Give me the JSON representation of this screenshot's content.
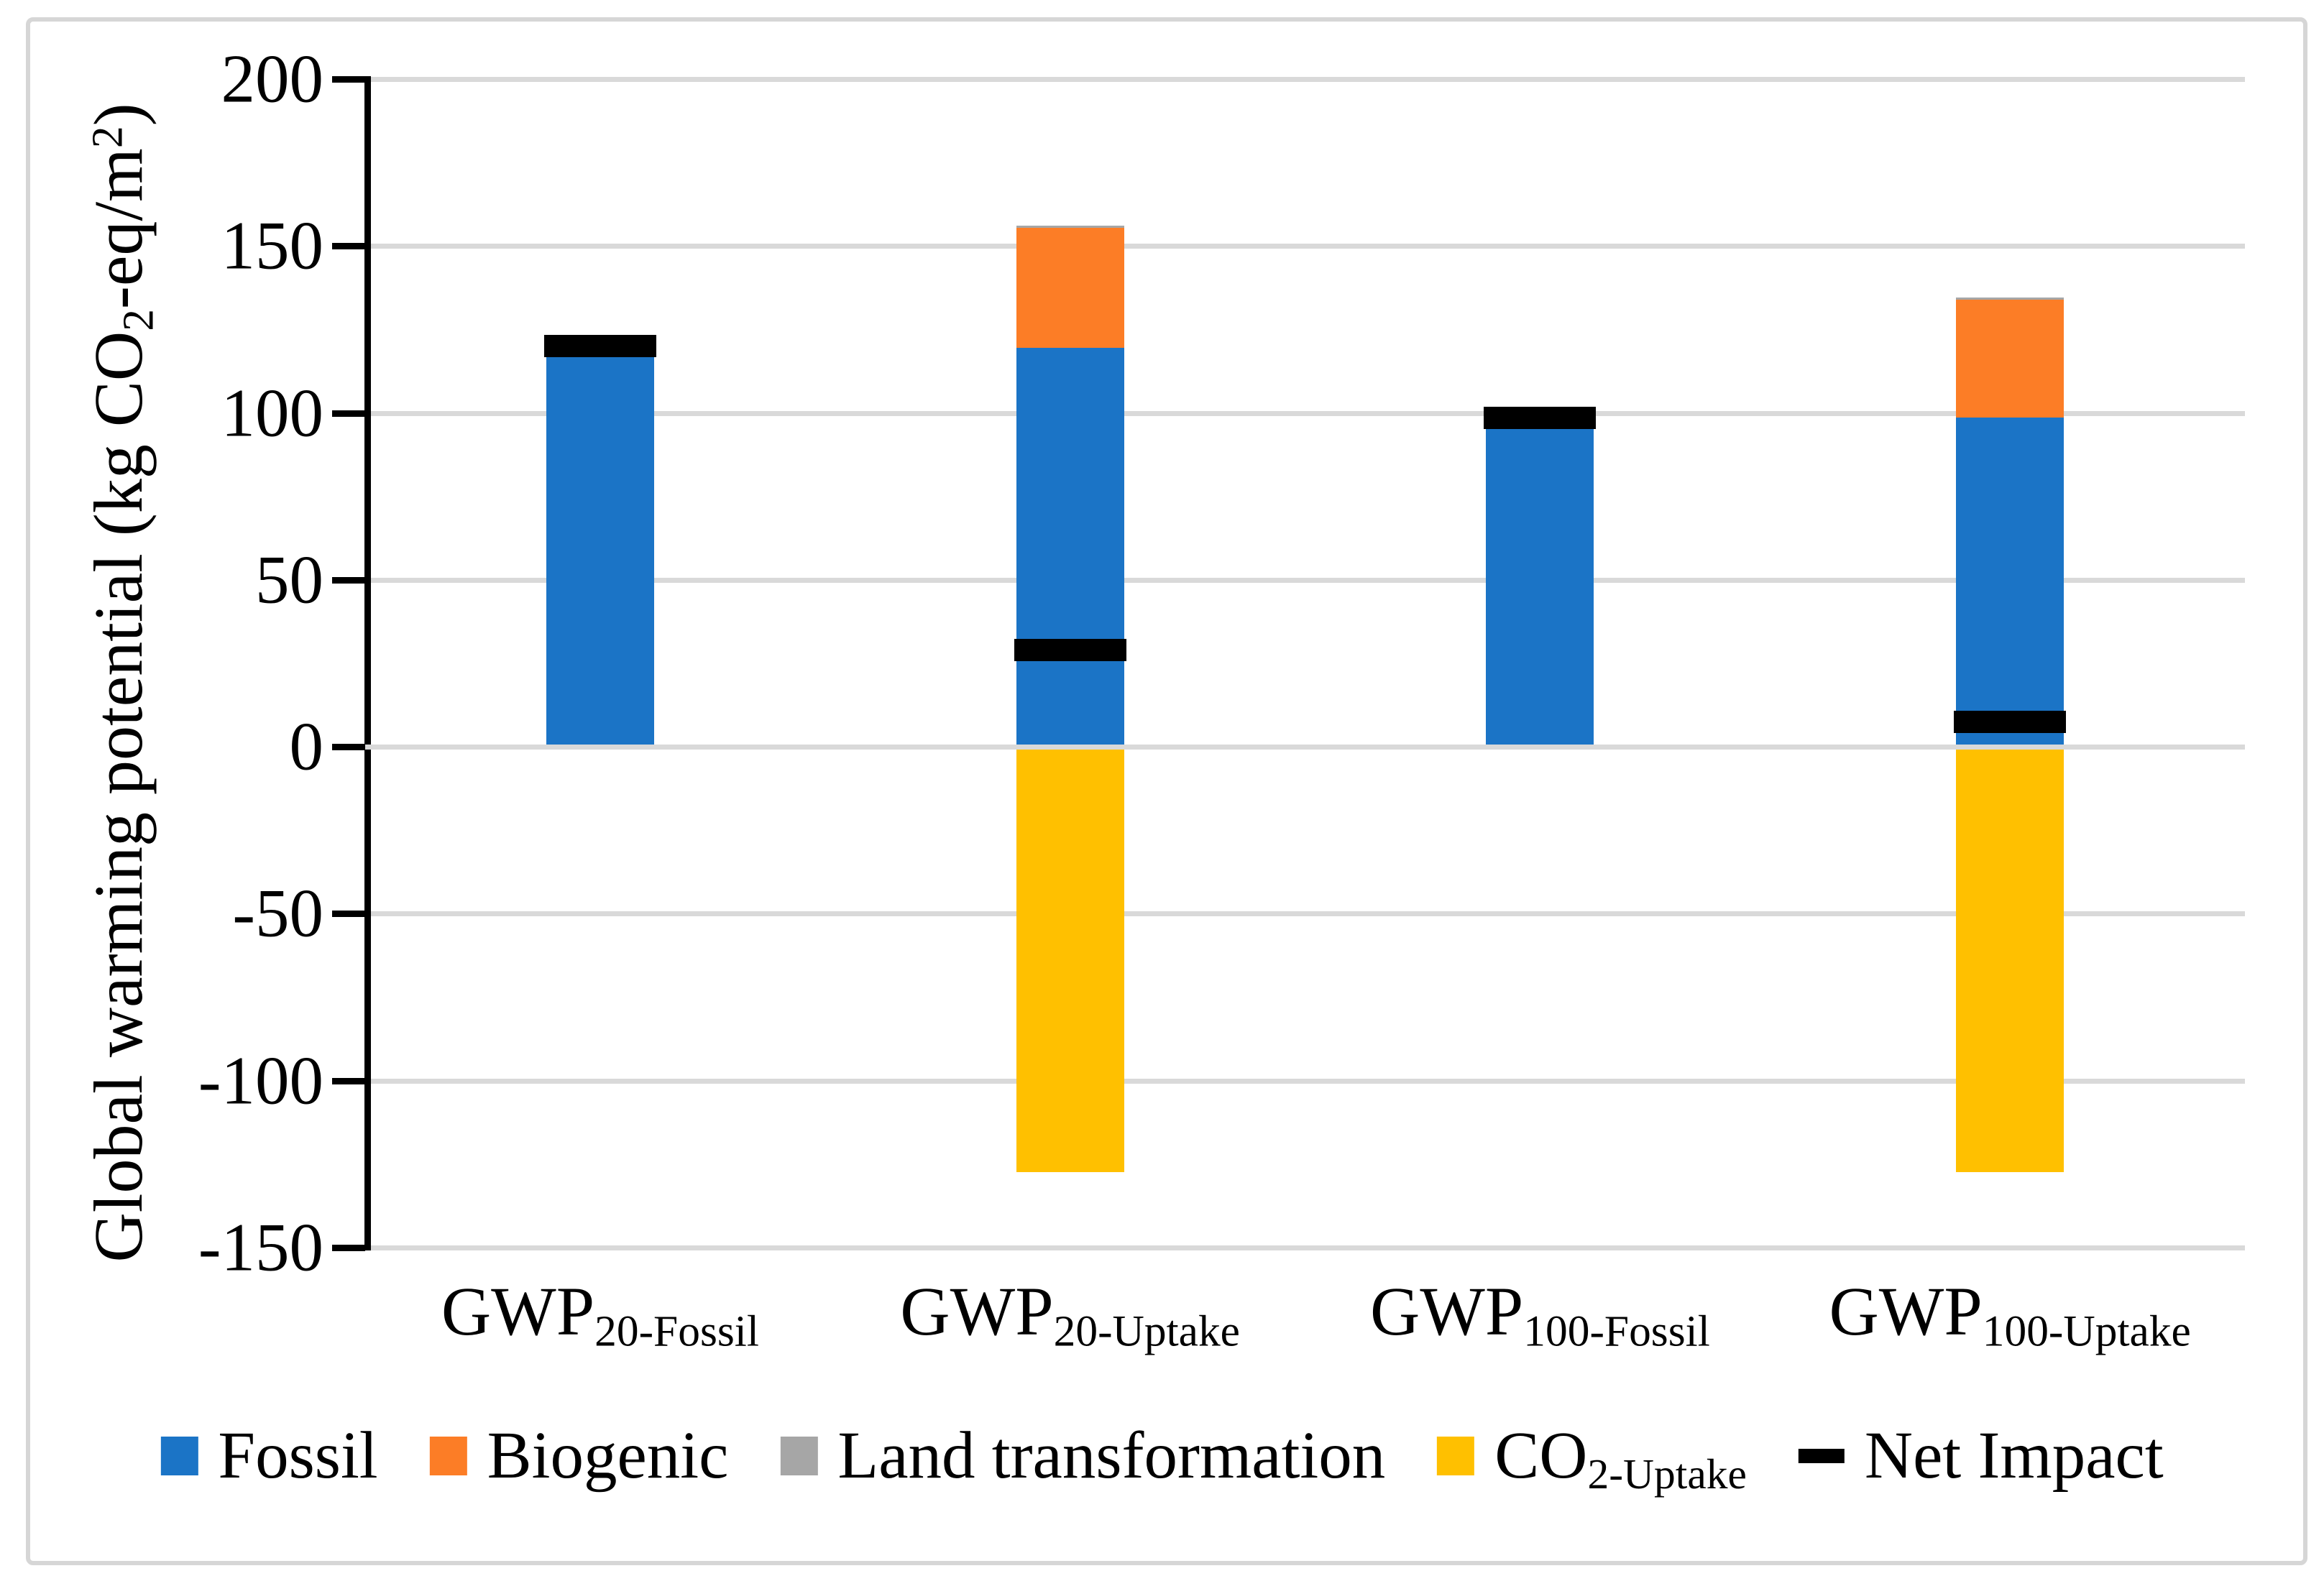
{
  "chart_data": {
    "type": "bar",
    "stacked": true,
    "title": "",
    "ylabel_parts": {
      "pre": "Global warming potential (kg CO",
      "sub": "2",
      "mid": "-eq/m",
      "sup": "2",
      "post": ")"
    },
    "categories": [
      {
        "main": "GWP",
        "sub": "20-Fossil"
      },
      {
        "main": "GWP",
        "sub": "20-Uptake"
      },
      {
        "main": "GWP",
        "sub": "100-Fossil"
      },
      {
        "main": "GWP",
        "sub": "100-Uptake"
      }
    ],
    "series": [
      {
        "name": "Fossil",
        "legend_main": "Fossil",
        "legend_sub": "",
        "color": "#1b74c6",
        "values": [
          120,
          119.5,
          98.5,
          98.5
        ]
      },
      {
        "name": "Biogenic",
        "legend_main": "Biogenic",
        "legend_sub": "",
        "color": "#fc7d26",
        "values": [
          0,
          36,
          0,
          35.5
        ]
      },
      {
        "name": "Land transformation",
        "legend_main": "Land transformation",
        "legend_sub": "",
        "color": "#a6a6a6",
        "values": [
          0,
          0.5,
          0,
          0.5
        ]
      },
      {
        "name": "CO2-Uptake",
        "legend_main": "CO",
        "legend_sub": "2-Uptake",
        "color": "#ffc000",
        "values": [
          0,
          -126.5,
          0,
          -126.5
        ]
      }
    ],
    "net_series": {
      "name": "Net Impact",
      "legend_main": "Net Impact",
      "color": "#000000",
      "values": [
        120,
        29,
        98.5,
        7.5
      ]
    },
    "ylim": [
      -150,
      200
    ],
    "y_ticks": [
      200,
      150,
      100,
      50,
      0,
      -50,
      -100,
      -150
    ],
    "grid": true,
    "legend_position": "bottom",
    "units": "kg CO2-eq/m2"
  },
  "colors": {
    "gridline": "#d9d9d9",
    "axis": "#000000",
    "frame_border": "#d6d6d6",
    "background": "#ffffff"
  }
}
